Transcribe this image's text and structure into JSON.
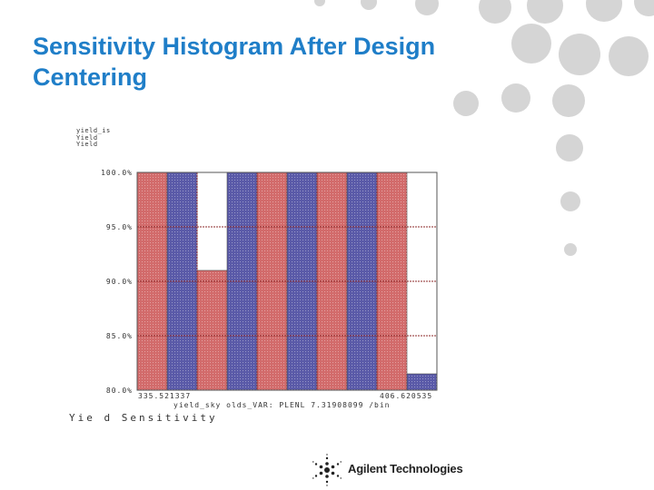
{
  "slide": {
    "title": "Sensitivity Histogram After Design Centering",
    "caption": "Yie d Sensitivity",
    "logo_text": "Agilent Technologies"
  },
  "chart_data": {
    "type": "bar",
    "legend": [
      "yield_is",
      "Yield",
      "Yield"
    ],
    "y_tick_labels": [
      "100.0%",
      "95.0%",
      "90.0%",
      "85.0%",
      "80.0%"
    ],
    "ylim": [
      80,
      100
    ],
    "x_start_label": "335.521337",
    "x_end_label": "406.620535",
    "x_axis_label": "yield_sky olds_VAR: PLENL 7.31908099 /bin",
    "values": [
      100,
      100,
      91.0,
      100,
      100,
      100,
      100,
      100,
      100,
      81.5
    ],
    "colors": [
      "#d26b6b",
      "#5a5aa8",
      "#d26b6b",
      "#5a5aa8",
      "#d26b6b",
      "#5a5aa8",
      "#d26b6b",
      "#5a5aa8",
      "#d26b6b",
      "#5a5aa8"
    ],
    "grid": true
  },
  "colors": {
    "title": "#1f7ec8",
    "grid": "#8e2a2a",
    "dots": "#d5d5d5"
  }
}
